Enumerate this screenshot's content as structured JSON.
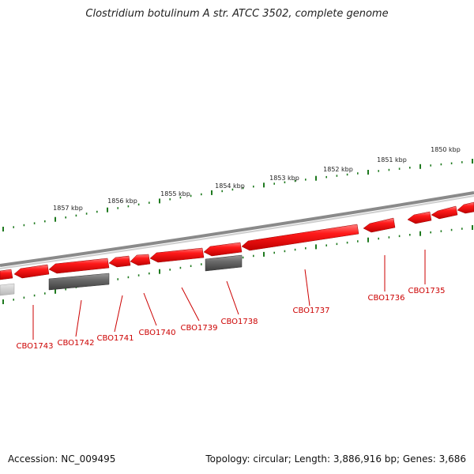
{
  "title": "Clostridium botulinum A str. ATCC 3502, complete genome",
  "footer": {
    "accession": "Accession: NC_009495",
    "summary": "Topology: circular; Length: 3,886,916 bp; Genes: 3,686"
  },
  "scale_labels": [
    "1857 kbp",
    "1856 kbp",
    "1855 kbp",
    "1854 kbp",
    "1853 kbp",
    "1852 kbp",
    "1851 kbp",
    "1850 kbp"
  ],
  "gene_labels": [
    "CBO1743",
    "CBO1742",
    "CBO1741",
    "CBO1740",
    "CBO1739",
    "CBO1738",
    "CBO1737",
    "CBO1736",
    "CBO1735"
  ],
  "colors": {
    "gene_forward": "#ee1111",
    "gene_highlight": "#ff6a6a",
    "rna_feature": "#666666",
    "backbone": "#8a8a8a",
    "ticks": "#1f7a1f",
    "gene_label": "#cc0000",
    "text": "#222222"
  }
}
